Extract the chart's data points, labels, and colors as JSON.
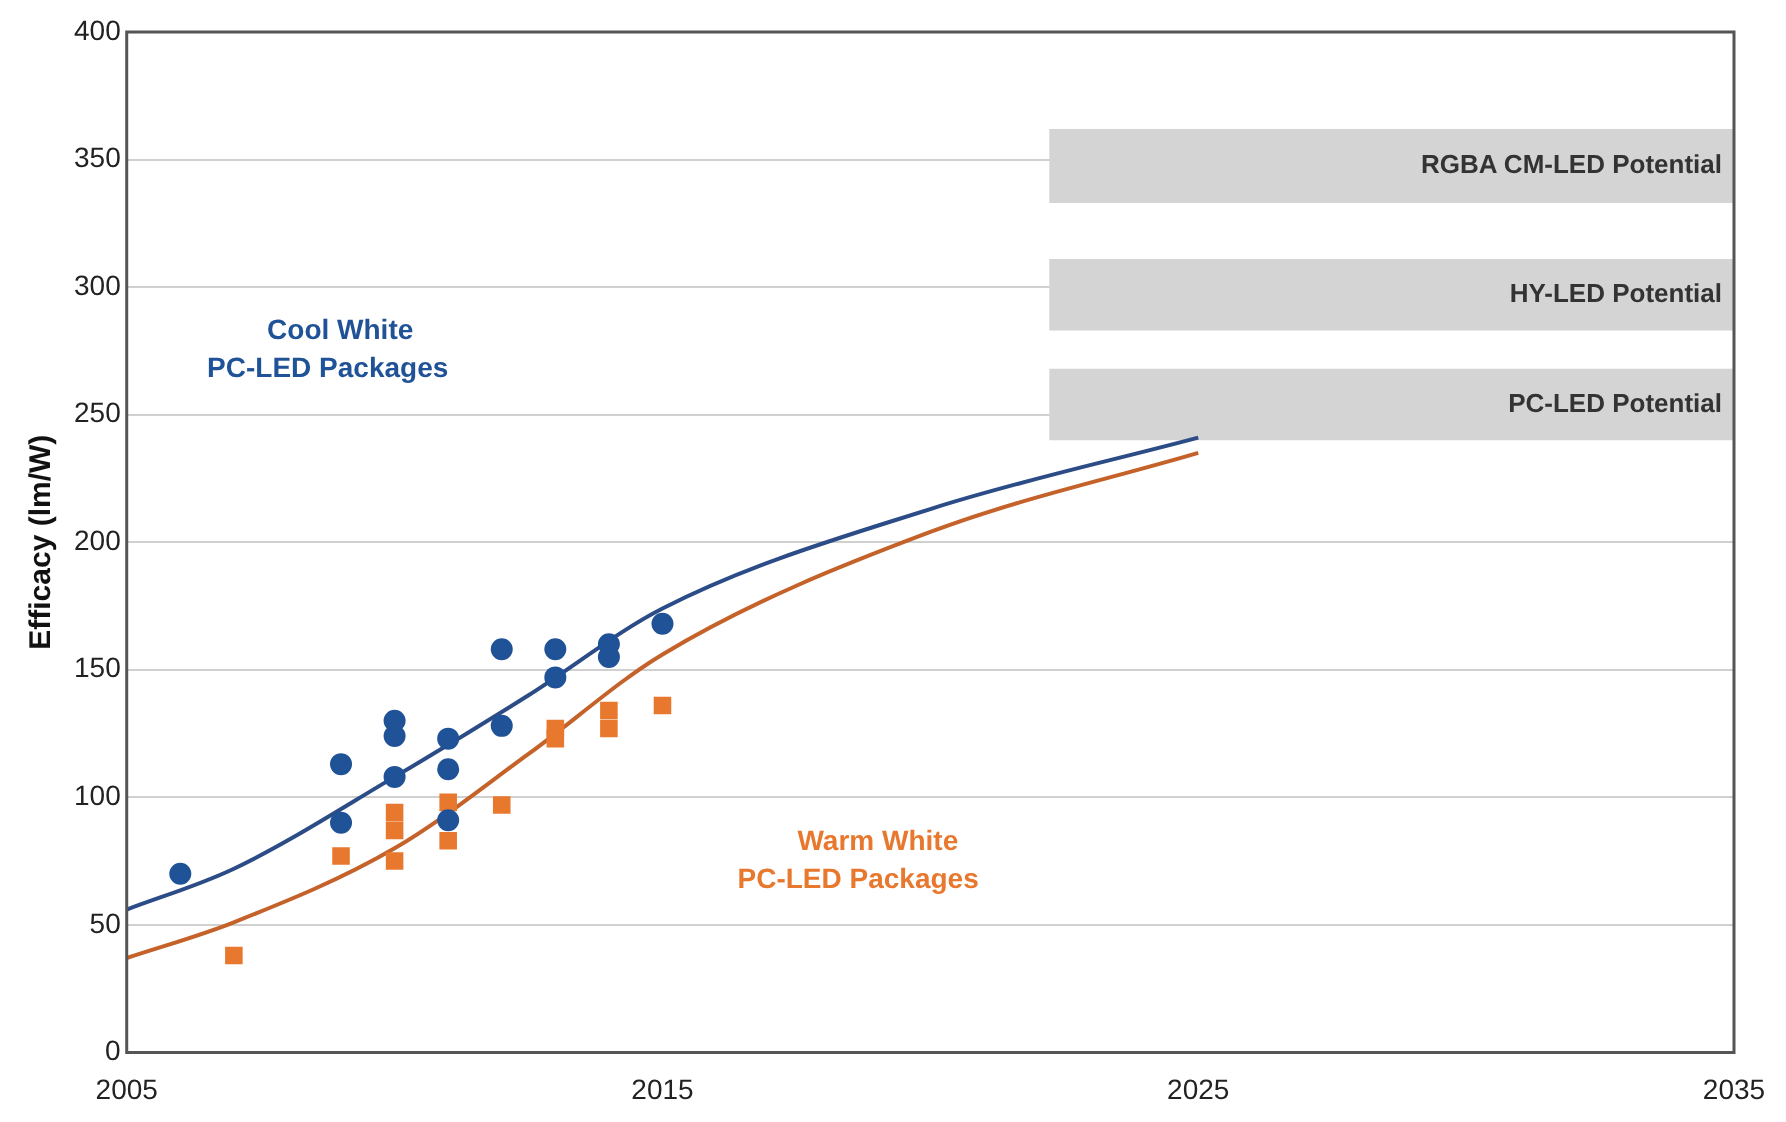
{
  "chart_data": {
    "type": "scatter",
    "ylabel": "Efficacy (lm/W)",
    "xlim": [
      2005,
      2035
    ],
    "xticks": [
      2005,
      2015,
      2025,
      2035
    ],
    "ylim": [
      0,
      400
    ],
    "yticks": [
      0,
      50,
      100,
      150,
      200,
      250,
      300,
      350,
      400
    ],
    "grid": "y",
    "legend": false,
    "series": [
      {
        "name": "Cool White\nPC-LED Packages",
        "marker": "circle",
        "color": "#1f5296",
        "x": [
          2006,
          2009,
          2009,
          2010,
          2010,
          2010,
          2011,
          2011,
          2011,
          2012,
          2012,
          2013,
          2013,
          2014,
          2014,
          2015
        ],
        "values": [
          70,
          113,
          90,
          130,
          124,
          108,
          123,
          111,
          91,
          158,
          128,
          158,
          147,
          160,
          155,
          168
        ]
      },
      {
        "name": "Warm White\nPC-LED Packages",
        "marker": "square",
        "color": "#e8782e",
        "x": [
          2007,
          2009,
          2010,
          2010,
          2010,
          2011,
          2011,
          2012,
          2013,
          2013,
          2014,
          2014,
          2015
        ],
        "values": [
          38,
          77,
          94,
          87,
          75,
          98,
          83,
          97,
          127,
          123,
          134,
          127,
          136
        ]
      },
      {
        "type": "line",
        "marker": "none",
        "color": "#2b4c86",
        "x": [
          2005,
          2007,
          2010,
          2012.5,
          2015,
          2020,
          2025
        ],
        "values": [
          56,
          72,
          108,
          140,
          174,
          213,
          241
        ]
      },
      {
        "type": "line",
        "marker": "none",
        "color": "#c4622a",
        "x": [
          2005,
          2007,
          2010,
          2012.5,
          2015,
          2020,
          2025
        ],
        "values": [
          37,
          51,
          80,
          117,
          156,
          204,
          235
        ]
      }
    ],
    "bands": [
      {
        "axis": "y",
        "from": 333,
        "to": 362,
        "label": "RGBA CM-LED Potential",
        "color": "#d4d4d4"
      },
      {
        "axis": "y",
        "from": 283,
        "to": 311,
        "label": "HY-LED Potential",
        "color": "#d4d4d4"
      },
      {
        "axis": "y",
        "from": 240,
        "to": 268,
        "label": "PC-LED Potential",
        "color": "#d4d4d4"
      }
    ]
  }
}
